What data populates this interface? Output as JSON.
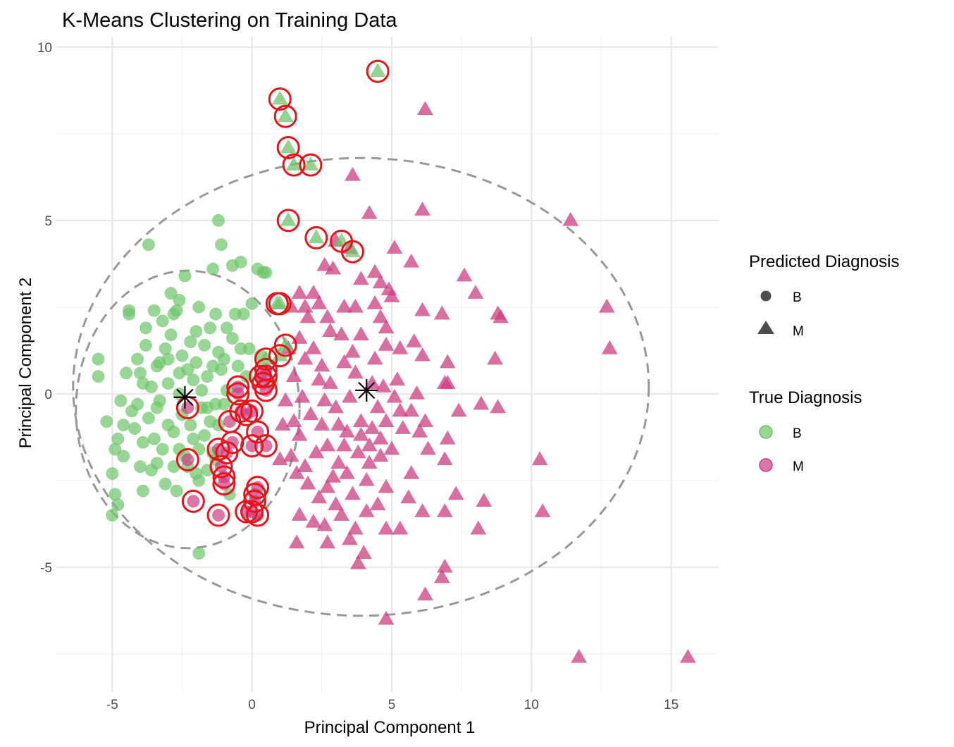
{
  "chart_data": {
    "type": "scatter",
    "title": "K-Means Clustering on Training Data",
    "xlabel": "Principal Component 1",
    "ylabel": "Principal Component 2",
    "xlim": [
      -7.0,
      16.7
    ],
    "ylim": [
      -8.6,
      10.3
    ],
    "x_ticks": [
      -5,
      0,
      5,
      10,
      15
    ],
    "y_ticks": [
      -5,
      0,
      5,
      10
    ],
    "x_tick_labels": [
      "-5",
      "0",
      "5",
      "10",
      "15"
    ],
    "y_tick_labels": [
      "-5",
      "0",
      "5",
      "10"
    ],
    "grid": true,
    "colors": {
      "B": "#6cc46a",
      "M": "#cc3d80",
      "misclassified": "#e8141b",
      "ellipse": "#999999",
      "center": "#000000"
    },
    "legend": {
      "position": "right",
      "shape_title": "Predicted Diagnosis",
      "shape_items": [
        {
          "label": "B",
          "shape": "circle"
        },
        {
          "label": "M",
          "shape": "triangle"
        }
      ],
      "color_title": "True Diagnosis",
      "color_items": [
        {
          "label": "B",
          "color": "#6cc46a"
        },
        {
          "label": "M",
          "color": "#cc3d80"
        }
      ]
    },
    "centers": [
      {
        "x": -2.4,
        "y": -0.1
      },
      {
        "x": 4.1,
        "y": 0.1
      }
    ],
    "ellipses": [
      {
        "cx": -2.3,
        "cy": -0.45,
        "rx": 4.0,
        "ry": 4.0
      },
      {
        "cx": 3.9,
        "cy": 0.2,
        "rx": 10.3,
        "ry": 6.6
      }
    ],
    "groups": [
      {
        "predicted": "B",
        "true": "B",
        "misclassified": false,
        "points": [
          [
            -5.5,
            1.0
          ],
          [
            -5.5,
            0.5
          ],
          [
            -5.2,
            -0.8
          ],
          [
            -5.0,
            -2.3
          ],
          [
            -4.9,
            -1.6
          ],
          [
            -4.8,
            -3.2
          ],
          [
            -5.0,
            -3.5
          ],
          [
            -4.9,
            -2.9
          ],
          [
            -4.7,
            -0.2
          ],
          [
            -4.6,
            -0.9
          ],
          [
            -4.8,
            -1.3
          ],
          [
            -4.5,
            0.6
          ],
          [
            -4.3,
            -0.5
          ],
          [
            -4.4,
            2.4
          ],
          [
            -4.4,
            2.3
          ],
          [
            -4.1,
            1.0
          ],
          [
            -4.0,
            0.6
          ],
          [
            -3.9,
            -1.4
          ],
          [
            -3.8,
            1.4
          ],
          [
            -3.7,
            4.3
          ],
          [
            -3.6,
            -2.2
          ],
          [
            -3.5,
            2.4
          ],
          [
            -3.3,
            -0.2
          ],
          [
            -3.2,
            -1.6
          ],
          [
            -3.4,
            0.8
          ],
          [
            -3.1,
            -2.6
          ],
          [
            -3.0,
            0.3
          ],
          [
            -3.1,
            1.3
          ],
          [
            -2.8,
            2.3
          ],
          [
            -2.7,
            2.4
          ],
          [
            -2.6,
            0.0
          ],
          [
            -2.5,
            -0.6
          ],
          [
            -2.8,
            -1.1
          ],
          [
            -2.6,
            -1.6
          ],
          [
            -2.4,
            3.4
          ],
          [
            -2.3,
            -2.1
          ],
          [
            -2.1,
            0.4
          ],
          [
            -2.0,
            1.8
          ],
          [
            -1.9,
            2.5
          ],
          [
            -1.8,
            -0.4
          ],
          [
            -1.9,
            -2.5
          ],
          [
            -1.7,
            1.4
          ],
          [
            -1.6,
            0.5
          ],
          [
            -1.5,
            -0.8
          ],
          [
            -1.4,
            -1.7
          ],
          [
            -1.4,
            3.6
          ],
          [
            -1.3,
            2.3
          ],
          [
            -1.2,
            1.2
          ],
          [
            -1.2,
            5.0
          ],
          [
            -1.1,
            4.3
          ],
          [
            -1.0,
            -0.3
          ],
          [
            -0.9,
            1.9
          ],
          [
            -0.8,
            -2.9
          ],
          [
            -0.7,
            3.7
          ],
          [
            -0.6,
            2.3
          ],
          [
            -0.5,
            0.8
          ],
          [
            -0.4,
            3.8
          ],
          [
            -0.3,
            2.3
          ],
          [
            -0.2,
            0.5
          ],
          [
            -0.1,
            1.3
          ],
          [
            0.0,
            2.6
          ],
          [
            0.2,
            3.6
          ],
          [
            0.3,
            1.1
          ],
          [
            0.4,
            3.5
          ],
          [
            0.5,
            3.5
          ],
          [
            0.7,
            0.3
          ],
          [
            -1.9,
            -4.6
          ],
          [
            -4.2,
            -1.0
          ],
          [
            -4.0,
            -2.1
          ],
          [
            -3.7,
            -0.7
          ],
          [
            -3.5,
            -1.3
          ],
          [
            -3.3,
            0.9
          ],
          [
            -3.0,
            -0.9
          ],
          [
            -2.9,
            1.7
          ],
          [
            -2.7,
            -2.8
          ],
          [
            -2.2,
            -0.9
          ],
          [
            -2.0,
            0.9
          ],
          [
            -1.7,
            -1.2
          ],
          [
            -1.5,
            1.9
          ],
          [
            -1.3,
            -0.3
          ],
          [
            -1.1,
            0.7
          ],
          [
            -3.9,
            -2.8
          ],
          [
            -4.6,
            -1.8
          ],
          [
            -3.8,
            1.9
          ],
          [
            -3.6,
            0.2
          ],
          [
            -3.4,
            -0.4
          ],
          [
            -2.9,
            2.9
          ],
          [
            -2.5,
            1.1
          ],
          [
            -2.3,
            0.7
          ],
          [
            -2.1,
            -1.3
          ],
          [
            -1.8,
            0.1
          ],
          [
            -1.6,
            -0.4
          ],
          [
            -1.4,
            0.8
          ],
          [
            -1.0,
            1.0
          ],
          [
            -0.7,
            1.6
          ],
          [
            -0.4,
            1.3
          ],
          [
            -4.1,
            -0.3
          ],
          [
            -3.2,
            2.1
          ],
          [
            -2.6,
            2.7
          ],
          [
            -2.2,
            1.5
          ],
          [
            -1.2,
            -0.9
          ],
          [
            -0.9,
            0.1
          ],
          [
            -3.9,
            0.3
          ],
          [
            -3.4,
            -2.0
          ],
          [
            -2.8,
            -2.1
          ],
          [
            -2.4,
            -1.8
          ],
          [
            -2.0,
            -2.3
          ],
          [
            -1.9,
            -1.6
          ],
          [
            -1.6,
            -2.2
          ],
          [
            -1.3,
            -1.9
          ],
          [
            -2.6,
            0.6
          ],
          [
            -3.0,
            1.0
          ]
        ]
      },
      {
        "predicted": "B",
        "true": "M",
        "misclassified": true,
        "points": [
          [
            -2.3,
            -0.4
          ],
          [
            -2.3,
            -1.9
          ],
          [
            -2.1,
            -3.1
          ],
          [
            -1.2,
            -3.5
          ],
          [
            -1.2,
            -1.6
          ],
          [
            -1.1,
            -2.1
          ],
          [
            -1.0,
            -2.4
          ],
          [
            -1.0,
            -2.6
          ],
          [
            -0.9,
            -1.7
          ],
          [
            -0.8,
            -0.8
          ],
          [
            -0.7,
            -1.4
          ],
          [
            -0.5,
            0.2
          ],
          [
            -0.5,
            0.0
          ],
          [
            -0.4,
            -0.5
          ],
          [
            -0.2,
            -0.6
          ],
          [
            0.0,
            -0.5
          ],
          [
            0.0,
            -1.5
          ],
          [
            0.2,
            -1.1
          ],
          [
            0.1,
            -2.9
          ],
          [
            0.2,
            -2.7
          ],
          [
            0.1,
            -3.1
          ],
          [
            0.0,
            -3.4
          ],
          [
            -0.2,
            -3.4
          ],
          [
            0.2,
            -3.5
          ],
          [
            0.3,
            0.5
          ],
          [
            0.4,
            0.3
          ],
          [
            0.5,
            0.7
          ],
          [
            0.5,
            0.5
          ],
          [
            0.5,
            0.1
          ],
          [
            0.5,
            -1.5
          ]
        ]
      },
      {
        "predicted": "M",
        "true": "M",
        "misclassified": false,
        "points": [
          [
            6.2,
            8.2
          ],
          [
            3.6,
            6.3
          ],
          [
            4.2,
            5.2
          ],
          [
            6.1,
            5.3
          ],
          [
            11.4,
            5.0
          ],
          [
            5.1,
            4.2
          ],
          [
            5.7,
            3.8
          ],
          [
            3.0,
            4.4
          ],
          [
            3.5,
            4.2
          ],
          [
            2.6,
            3.7
          ],
          [
            2.9,
            3.6
          ],
          [
            3.9,
            3.3
          ],
          [
            4.4,
            3.5
          ],
          [
            4.6,
            3.2
          ],
          [
            4.9,
            3.0
          ],
          [
            7.6,
            3.4
          ],
          [
            1.7,
            2.9
          ],
          [
            2.2,
            2.9
          ],
          [
            1.4,
            2.5
          ],
          [
            1.9,
            2.5
          ],
          [
            2.4,
            2.6
          ],
          [
            2.7,
            2.2
          ],
          [
            3.3,
            2.5
          ],
          [
            3.7,
            2.5
          ],
          [
            4.4,
            2.6
          ],
          [
            4.6,
            2.2
          ],
          [
            5.0,
            2.8
          ],
          [
            6.1,
            2.4
          ],
          [
            6.8,
            2.3
          ],
          [
            8.0,
            2.9
          ],
          [
            8.8,
            2.3
          ],
          [
            8.9,
            2.2
          ],
          [
            12.7,
            2.5
          ],
          [
            12.8,
            1.3
          ],
          [
            2.0,
            2.2
          ],
          [
            2.8,
            1.8
          ],
          [
            1.7,
            1.6
          ],
          [
            2.2,
            1.3
          ],
          [
            3.2,
            1.7
          ],
          [
            3.9,
            1.7
          ],
          [
            4.8,
            1.9
          ],
          [
            5.3,
            1.3
          ],
          [
            5.8,
            1.5
          ],
          [
            6.1,
            1.1
          ],
          [
            7.0,
            0.9
          ],
          [
            8.7,
            1.0
          ],
          [
            1.3,
            1.3
          ],
          [
            1.9,
            1.0
          ],
          [
            2.5,
            0.8
          ],
          [
            3.3,
            0.9
          ],
          [
            3.6,
            1.2
          ],
          [
            4.4,
            1.0
          ],
          [
            4.8,
            1.4
          ],
          [
            5.2,
            0.4
          ],
          [
            5.9,
            0.0
          ],
          [
            6.9,
            0.3
          ],
          [
            7.0,
            0.3
          ],
          [
            1.5,
            0.5
          ],
          [
            2.4,
            0.4
          ],
          [
            2.8,
            0.3
          ],
          [
            3.7,
            0.6
          ],
          [
            4.3,
            0.3
          ],
          [
            4.7,
            0.2
          ],
          [
            1.2,
            -0.2
          ],
          [
            1.8,
            -0.1
          ],
          [
            2.6,
            -0.2
          ],
          [
            3.0,
            -0.4
          ],
          [
            3.5,
            -0.1
          ],
          [
            4.5,
            -0.4
          ],
          [
            5.1,
            -0.1
          ],
          [
            5.7,
            -0.5
          ],
          [
            7.4,
            -0.5
          ],
          [
            8.2,
            -0.3
          ],
          [
            8.8,
            -0.4
          ],
          [
            1.1,
            -0.9
          ],
          [
            1.5,
            -0.8
          ],
          [
            2.5,
            -0.9
          ],
          [
            3.1,
            -0.9
          ],
          [
            3.4,
            -1.1
          ],
          [
            3.9,
            -0.8
          ],
          [
            4.3,
            -1.0
          ],
          [
            4.6,
            -1.3
          ],
          [
            4.8,
            -0.8
          ],
          [
            5.4,
            -1.0
          ],
          [
            6.0,
            -1.1
          ],
          [
            6.3,
            -1.6
          ],
          [
            7.0,
            -1.3
          ],
          [
            1.0,
            -1.9
          ],
          [
            1.4,
            -1.8
          ],
          [
            1.9,
            -2.1
          ],
          [
            2.3,
            -1.7
          ],
          [
            2.7,
            -1.5
          ],
          [
            3.1,
            -2.0
          ],
          [
            3.8,
            -1.7
          ],
          [
            4.2,
            -2.0
          ],
          [
            4.6,
            -1.8
          ],
          [
            5.0,
            -1.6
          ],
          [
            5.7,
            -2.3
          ],
          [
            6.9,
            -1.9
          ],
          [
            10.3,
            -1.9
          ],
          [
            1.6,
            -2.3
          ],
          [
            2.0,
            -2.6
          ],
          [
            2.7,
            -2.7
          ],
          [
            3.4,
            -2.3
          ],
          [
            3.6,
            -2.9
          ],
          [
            4.8,
            -2.7
          ],
          [
            5.6,
            -3.0
          ],
          [
            7.3,
            -2.9
          ],
          [
            8.3,
            -3.1
          ],
          [
            1.7,
            -3.5
          ],
          [
            2.2,
            -3.7
          ],
          [
            2.6,
            -3.8
          ],
          [
            3.2,
            -3.5
          ],
          [
            3.7,
            -3.9
          ],
          [
            4.1,
            -3.4
          ],
          [
            4.8,
            -3.9
          ],
          [
            5.3,
            -3.9
          ],
          [
            6.1,
            -3.4
          ],
          [
            6.9,
            -3.4
          ],
          [
            8.1,
            -3.9
          ],
          [
            10.4,
            -3.4
          ],
          [
            1.6,
            -4.3
          ],
          [
            2.7,
            -4.3
          ],
          [
            3.5,
            -4.2
          ],
          [
            4.0,
            -4.6
          ],
          [
            3.8,
            -4.9
          ],
          [
            6.9,
            -5.0
          ],
          [
            6.8,
            -5.3
          ],
          [
            6.2,
            -5.8
          ],
          [
            4.8,
            -6.5
          ],
          [
            11.7,
            -7.6
          ],
          [
            15.6,
            -7.6
          ],
          [
            2.4,
            -3.0
          ],
          [
            3.0,
            -3.2
          ],
          [
            3.3,
            -1.5
          ],
          [
            2.1,
            -0.6
          ],
          [
            4.1,
            -2.5
          ],
          [
            4.5,
            -3.2
          ],
          [
            3.9,
            -1.2
          ],
          [
            2.9,
            -2.4
          ],
          [
            1.7,
            -1.2
          ],
          [
            5.3,
            -0.5
          ],
          [
            6.2,
            -0.8
          ],
          [
            4.2,
            -1.5
          ]
        ]
      },
      {
        "predicted": "M",
        "true": "B",
        "misclassified": true,
        "points": [
          [
            4.5,
            9.3
          ],
          [
            1.0,
            8.5
          ],
          [
            1.2,
            8.0
          ],
          [
            1.3,
            7.1
          ],
          [
            1.5,
            6.6
          ],
          [
            2.1,
            6.6
          ],
          [
            1.3,
            5.0
          ],
          [
            2.3,
            4.5
          ],
          [
            3.2,
            4.4
          ],
          [
            3.6,
            4.1
          ],
          [
            1.0,
            2.6
          ],
          [
            0.9,
            2.6
          ],
          [
            1.2,
            1.4
          ],
          [
            1.0,
            1.1
          ],
          [
            0.5,
            1.0
          ]
        ]
      }
    ]
  }
}
